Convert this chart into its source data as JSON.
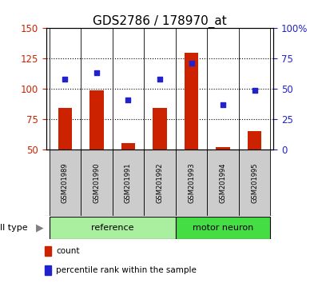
{
  "title": "GDS2786 / 178970_at",
  "samples": [
    "GSM201989",
    "GSM201990",
    "GSM201991",
    "GSM201992",
    "GSM201993",
    "GSM201994",
    "GSM201995"
  ],
  "bar_values": [
    84,
    99,
    55,
    84,
    130,
    52,
    65
  ],
  "percentile_values": [
    108,
    113,
    91,
    108,
    121,
    87,
    99
  ],
  "bar_color": "#CC2200",
  "dot_color": "#2222CC",
  "left_ylim": [
    50,
    150
  ],
  "left_yticks": [
    50,
    75,
    100,
    125,
    150
  ],
  "right_ylim": [
    0,
    100
  ],
  "right_yticks": [
    0,
    25,
    50,
    75,
    100
  ],
  "right_yticklabels": [
    "0",
    "25",
    "50",
    "75",
    "100%"
  ],
  "groups": [
    {
      "label": "reference",
      "indices": [
        0,
        1,
        2,
        3
      ],
      "color": "#AAEEA0"
    },
    {
      "label": "motor neuron",
      "indices": [
        4,
        5,
        6
      ],
      "color": "#44DD44"
    }
  ],
  "cell_type_label": "cell type",
  "legend_items": [
    {
      "label": "count",
      "color": "#CC2200"
    },
    {
      "label": "percentile rank within the sample",
      "color": "#2222CC"
    }
  ],
  "grid_color": "black",
  "tick_area_color": "#CCCCCC",
  "background_color": "white",
  "title_fontsize": 11,
  "tick_fontsize": 8.5,
  "sample_fontsize": 6,
  "group_fontsize": 8,
  "legend_fontsize": 7.5,
  "cell_type_fontsize": 8,
  "bar_width": 0.45,
  "dot_size": 25
}
